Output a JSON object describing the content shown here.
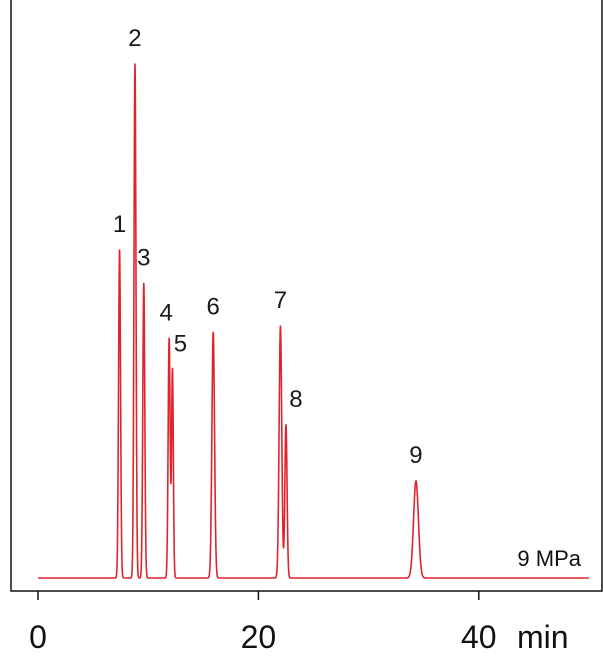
{
  "chart_data": {
    "type": "line",
    "title": "",
    "xlabel": "min",
    "ylabel": "",
    "xlim": [
      0,
      50
    ],
    "ylim": [
      0,
      100
    ],
    "x_ticks": [
      0,
      20,
      40
    ],
    "x_tick_labels": [
      "0",
      "20",
      "40"
    ],
    "grid": false,
    "legend": "none",
    "condition_label": "9 MPa",
    "line_color": "#e0242e",
    "axis_color": "#111111",
    "peaks": [
      {
        "label": "1",
        "x": 7.4,
        "height": 63.8,
        "width": 0.09
      },
      {
        "label": "2",
        "x": 8.8,
        "height": 100.0,
        "width": 0.09
      },
      {
        "label": "3",
        "x": 9.6,
        "height": 57.3,
        "width": 0.09
      },
      {
        "label": "4",
        "x": 11.9,
        "height": 46.6,
        "width": 0.09
      },
      {
        "label": "5",
        "x": 12.2,
        "height": 40.6,
        "width": 0.08
      },
      {
        "label": "6",
        "x": 15.9,
        "height": 47.8,
        "width": 0.12
      },
      {
        "label": "7",
        "x": 22.0,
        "height": 49.0,
        "width": 0.12
      },
      {
        "label": "8",
        "x": 22.5,
        "height": 29.8,
        "width": 0.1
      },
      {
        "label": "9",
        "x": 34.3,
        "height": 18.9,
        "width": 0.22
      }
    ]
  }
}
